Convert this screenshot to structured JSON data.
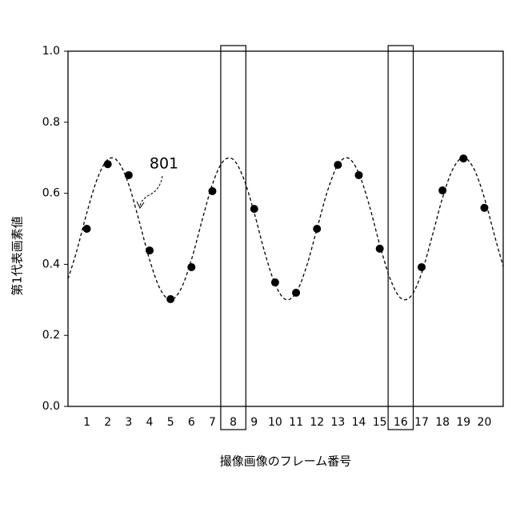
{
  "chart_data": {
    "type": "scatter",
    "xlabel": "撮像画像のフレーム番号",
    "ylabel": "第1代表画素値",
    "x": [
      1,
      2,
      3,
      4,
      5,
      6,
      7,
      9,
      10,
      11,
      12,
      13,
      14,
      15,
      17,
      18,
      19,
      20
    ],
    "values": [
      0.5,
      0.682,
      0.651,
      0.439,
      0.302,
      0.392,
      0.606,
      0.556,
      0.349,
      0.32,
      0.5,
      0.68,
      0.651,
      0.444,
      0.392,
      0.608,
      0.698,
      0.559
    ],
    "color": "#000000",
    "curve": {
      "x": [
        0.1,
        0.5,
        1,
        1.5,
        2,
        2.5,
        3,
        3.5,
        4,
        4.5,
        5,
        5.5,
        6,
        6.5,
        7,
        7.5,
        8,
        8.5,
        9,
        9.5,
        10,
        10.5,
        11,
        11.5,
        12,
        12.5,
        13,
        13.5,
        14,
        14.5,
        15,
        15.5,
        16,
        16.5,
        17,
        17.5,
        18,
        18.5,
        19,
        19.5,
        20,
        20.5,
        20.9
      ],
      "values": [
        0.359,
        0.434,
        0.545,
        0.641,
        0.695,
        0.689,
        0.625,
        0.522,
        0.413,
        0.331,
        0.3,
        0.331,
        0.413,
        0.522,
        0.625,
        0.689,
        0.695,
        0.641,
        0.545,
        0.434,
        0.344,
        0.301,
        0.32,
        0.394,
        0.5,
        0.606,
        0.68,
        0.699,
        0.656,
        0.566,
        0.455,
        0.359,
        0.305,
        0.311,
        0.375,
        0.478,
        0.587,
        0.669,
        0.7,
        0.669,
        0.587,
        0.478,
        0.394
      ],
      "style": "dashed"
    },
    "annotation": "801",
    "highlight_x": [
      8,
      16
    ],
    "xlim": [
      0.1,
      20.9
    ],
    "ylim": [
      0,
      1
    ],
    "xticks": [
      1,
      2,
      3,
      4,
      5,
      6,
      7,
      8,
      9,
      10,
      11,
      12,
      13,
      14,
      15,
      16,
      17,
      18,
      19,
      20
    ],
    "yticks": [
      {
        "value": 0,
        "label": "0.0"
      },
      0.2,
      0.4,
      0.6,
      0.8,
      {
        "value": 1,
        "label": "1.0"
      }
    ]
  }
}
